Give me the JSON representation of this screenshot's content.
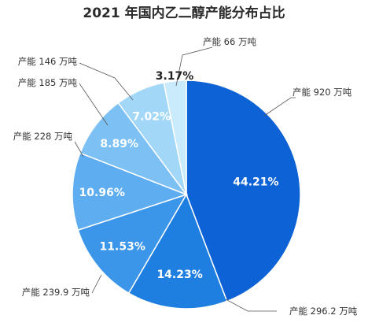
{
  "chart_data": {
    "type": "pie",
    "title": "2021 年国内乙二醇产能分布占比",
    "start": "12 o'clock",
    "direction": "clockwise",
    "slices": [
      {
        "percent_label": "44.21%",
        "value": 44.21,
        "callout": "产能 920 万吨",
        "color": "#0d63d6"
      },
      {
        "percent_label": "14.23%",
        "value": 14.23,
        "callout": "产能 296.2 万吨",
        "color": "#1f7fe0"
      },
      {
        "percent_label": "11.53%",
        "value": 11.53,
        "callout": "产能 239.9 万吨",
        "color": "#3b96ea"
      },
      {
        "percent_label": "10.96%",
        "value": 10.96,
        "callout": "产能 228 万吨",
        "color": "#5eadf1"
      },
      {
        "percent_label": "8.89%",
        "value": 8.89,
        "callout": "产能 185 万吨",
        "color": "#7cc0f4"
      },
      {
        "percent_label": "7.02%",
        "value": 7.02,
        "callout": "产能 146 万吨",
        "color": "#a3d7f8"
      },
      {
        "percent_label": "3.17%",
        "value": 3.17,
        "callout": "产能 66 万吨",
        "color": "#c9ebfb"
      }
    ]
  }
}
